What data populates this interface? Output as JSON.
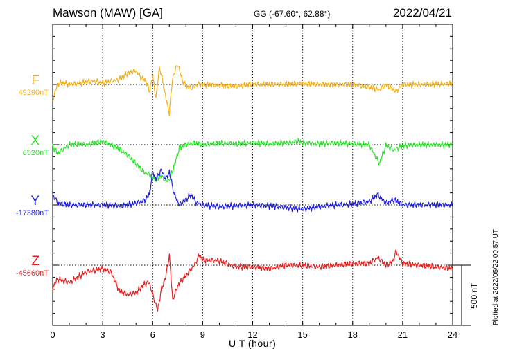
{
  "header": {
    "station": "Mawson (MAW)  [GA]",
    "coords": "GG (-67.60°,  62.88°)",
    "date": "2022/04/21"
  },
  "footer": {
    "plotted": "Plotted at 2022/05/22 00:57 UT"
  },
  "chart_data": {
    "type": "line",
    "xlabel": "U T (hour)",
    "xlim": [
      0,
      24
    ],
    "xticks": [
      0,
      3,
      6,
      9,
      12,
      15,
      18,
      21,
      24
    ],
    "grid": true,
    "scale_bar": {
      "value": 500,
      "label": "500 nT"
    },
    "series": [
      {
        "name": "F",
        "baseline_label": "49290nT",
        "color": "#f2b01a",
        "points": [
          [
            0,
            90
          ],
          [
            0.3,
            -5
          ],
          [
            0.6,
            -10
          ],
          [
            1,
            0
          ],
          [
            1.5,
            -5
          ],
          [
            2,
            -15
          ],
          [
            2.5,
            -20
          ],
          [
            3,
            -8
          ],
          [
            3.5,
            -20
          ],
          [
            4,
            -30
          ],
          [
            4.5,
            -65
          ],
          [
            5,
            -80
          ],
          [
            5.3,
            -40
          ],
          [
            5.6,
            -20
          ],
          [
            5.8,
            40
          ],
          [
            6,
            -50
          ],
          [
            6.2,
            80
          ],
          [
            6.4,
            -100
          ],
          [
            6.6,
            -20
          ],
          [
            6.8,
            80
          ],
          [
            7,
            165
          ],
          [
            7.2,
            -40
          ],
          [
            7.5,
            -120
          ],
          [
            7.8,
            -20
          ],
          [
            8,
            10
          ],
          [
            8.3,
            20
          ],
          [
            8.7,
            0
          ],
          [
            9,
            0
          ],
          [
            10,
            5
          ],
          [
            11,
            10
          ],
          [
            12,
            -2
          ],
          [
            13,
            0
          ],
          [
            14,
            -2
          ],
          [
            15,
            -5
          ],
          [
            16,
            -1
          ],
          [
            17,
            2
          ],
          [
            18,
            0
          ],
          [
            19,
            15
          ],
          [
            19.6,
            30
          ],
          [
            20,
            0
          ],
          [
            20.6,
            40
          ],
          [
            21,
            0
          ],
          [
            22,
            0
          ],
          [
            23,
            -2
          ],
          [
            24,
            -5
          ]
        ]
      },
      {
        "name": "X",
        "baseline_label": "6520nT",
        "color": "#2ae32a",
        "points": [
          [
            0,
            10
          ],
          [
            0.3,
            50
          ],
          [
            1,
            0
          ],
          [
            1.5,
            -5
          ],
          [
            2,
            0
          ],
          [
            2.5,
            -10
          ],
          [
            3,
            -20
          ],
          [
            3.5,
            0
          ],
          [
            4,
            25
          ],
          [
            4.5,
            60
          ],
          [
            5,
            110
          ],
          [
            5.5,
            160
          ],
          [
            5.8,
            170
          ],
          [
            6,
            190
          ],
          [
            6.2,
            200
          ],
          [
            6.5,
            180
          ],
          [
            6.8,
            210
          ],
          [
            7,
            200
          ],
          [
            7.3,
            120
          ],
          [
            7.6,
            20
          ],
          [
            8,
            0
          ],
          [
            8.5,
            -10
          ],
          [
            9,
            0
          ],
          [
            10,
            -10
          ],
          [
            11,
            -5
          ],
          [
            12,
            -10
          ],
          [
            13,
            -5
          ],
          [
            14,
            -10
          ],
          [
            14.8,
            -20
          ],
          [
            15,
            -10
          ],
          [
            16,
            -5
          ],
          [
            17,
            -10
          ],
          [
            18,
            -5
          ],
          [
            19,
            0
          ],
          [
            19.6,
            110
          ],
          [
            20,
            5
          ],
          [
            20.5,
            30
          ],
          [
            21,
            5
          ],
          [
            22,
            0
          ],
          [
            23,
            0
          ],
          [
            24,
            0
          ]
        ]
      },
      {
        "name": "Y",
        "baseline_label": "-17380nT",
        "color": "#2020e0",
        "points": [
          [
            0,
            -60
          ],
          [
            0.3,
            -10
          ],
          [
            1,
            0
          ],
          [
            2,
            0
          ],
          [
            3,
            0
          ],
          [
            4,
            5
          ],
          [
            4.5,
            0
          ],
          [
            5,
            -10
          ],
          [
            5.5,
            -25
          ],
          [
            5.8,
            -60
          ],
          [
            6,
            -190
          ],
          [
            6.2,
            -150
          ],
          [
            6.5,
            -200
          ],
          [
            6.8,
            -150
          ],
          [
            7,
            -190
          ],
          [
            7.3,
            -60
          ],
          [
            7.6,
            0
          ],
          [
            8,
            -30
          ],
          [
            8.3,
            -60
          ],
          [
            8.6,
            -15
          ],
          [
            9,
            0
          ],
          [
            10,
            10
          ],
          [
            11,
            5
          ],
          [
            12,
            0
          ],
          [
            13,
            5
          ],
          [
            14,
            15
          ],
          [
            15,
            25
          ],
          [
            16,
            10
          ],
          [
            17,
            0
          ],
          [
            18,
            -5
          ],
          [
            19,
            -20
          ],
          [
            19.5,
            -60
          ],
          [
            20,
            -10
          ],
          [
            20.5,
            -30
          ],
          [
            21,
            0
          ],
          [
            22,
            0
          ],
          [
            23,
            0
          ],
          [
            24,
            0
          ]
        ]
      },
      {
        "name": "Z",
        "baseline_label": "-45660nT",
        "color": "#e82020",
        "points": [
          [
            0,
            130
          ],
          [
            0.3,
            80
          ],
          [
            1,
            100
          ],
          [
            1.5,
            70
          ],
          [
            2,
            40
          ],
          [
            2.5,
            30
          ],
          [
            3,
            20
          ],
          [
            3.5,
            40
          ],
          [
            4,
            150
          ],
          [
            4.5,
            170
          ],
          [
            5,
            160
          ],
          [
            5.5,
            110
          ],
          [
            5.8,
            100
          ],
          [
            6,
            170
          ],
          [
            6.3,
            260
          ],
          [
            6.5,
            150
          ],
          [
            6.8,
            60
          ],
          [
            7,
            -60
          ],
          [
            7.2,
            200
          ],
          [
            7.5,
            120
          ],
          [
            7.8,
            80
          ],
          [
            8,
            60
          ],
          [
            8.5,
            0
          ],
          [
            8.8,
            -60
          ],
          [
            9,
            -30
          ],
          [
            10,
            -25
          ],
          [
            11,
            10
          ],
          [
            12,
            10
          ],
          [
            13,
            20
          ],
          [
            14,
            0
          ],
          [
            15,
            0
          ],
          [
            16,
            10
          ],
          [
            17,
            0
          ],
          [
            18,
            -10
          ],
          [
            19,
            -10
          ],
          [
            19.5,
            -45
          ],
          [
            20,
            0
          ],
          [
            20.4,
            -20
          ],
          [
            20.6,
            -80
          ],
          [
            21,
            -10
          ],
          [
            22,
            0
          ],
          [
            23,
            10
          ],
          [
            24,
            20
          ]
        ]
      }
    ]
  }
}
